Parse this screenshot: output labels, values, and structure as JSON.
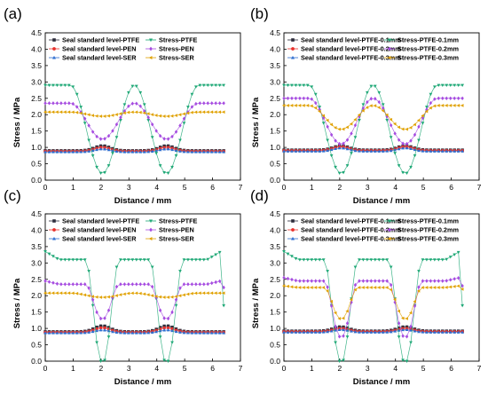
{
  "chart_data": [
    {
      "panel": "(a)",
      "type": "line",
      "xlabel": "Distance / mm",
      "ylabel": "Stress / MPa",
      "xlim": [
        0,
        7
      ],
      "ylim": [
        0,
        4.5
      ],
      "xticks": [
        0,
        1,
        2,
        3,
        4,
        5,
        6,
        7
      ],
      "yticks": [
        0.0,
        0.5,
        1.0,
        1.5,
        2.0,
        2.5,
        3.0,
        3.5,
        4.0,
        4.5
      ],
      "legend": "top, two columns",
      "series": [
        {
          "name": "Seal standard level-PTFE",
          "color": "#2b2b3a",
          "marker": "square",
          "profile": "bump",
          "base": 0.9,
          "peak": 1.05,
          "x_range": [
            0,
            6.4
          ]
        },
        {
          "name": "Seal standard level-PEN",
          "color": "#e8302b",
          "marker": "circle",
          "profile": "bump",
          "base": 0.88,
          "peak": 1.0,
          "x_range": [
            0,
            6.4
          ]
        },
        {
          "name": "Seal standard level-SER",
          "color": "#2f6fd0",
          "marker": "triangle-up",
          "profile": "bump",
          "base": 0.86,
          "peak": 0.95,
          "x_range": [
            0,
            6.4
          ]
        },
        {
          "name": "Stress-PTFE",
          "color": "#1ea876",
          "marker": "triangle-down",
          "profile": "sine",
          "high": 2.9,
          "low": 0.2,
          "x_range": [
            0,
            6.4
          ]
        },
        {
          "name": "Stress-PEN",
          "color": "#a64ce0",
          "marker": "diamond",
          "profile": "sine",
          "high": 2.35,
          "low": 1.25,
          "x_range": [
            0,
            6.4
          ]
        },
        {
          "name": "Stress-SER",
          "color": "#e0a100",
          "marker": "triangle-left",
          "profile": "sine",
          "high": 2.08,
          "low": 1.95,
          "x_range": [
            0,
            6.4
          ]
        }
      ]
    },
    {
      "panel": "(b)",
      "type": "line",
      "xlabel": "Distance / mm",
      "ylabel": "Stress / MPa",
      "xlim": [
        0,
        7
      ],
      "ylim": [
        0,
        4.5
      ],
      "xticks": [
        0,
        1,
        2,
        3,
        4,
        5,
        6,
        7
      ],
      "yticks": [
        0.0,
        0.5,
        1.0,
        1.5,
        2.0,
        2.5,
        3.0,
        3.5,
        4.0,
        4.5
      ],
      "legend": "top, two columns",
      "series": [
        {
          "name": "Seal standard level-PTFE-0.1mm",
          "color": "#2b2b3a",
          "marker": "square",
          "profile": "bump",
          "base": 0.92,
          "peak": 1.05,
          "x_range": [
            0,
            6.4
          ]
        },
        {
          "name": "Seal standard level-PTFE-0.2mm",
          "color": "#e8302b",
          "marker": "circle",
          "profile": "bump",
          "base": 0.9,
          "peak": 1.02,
          "x_range": [
            0,
            6.4
          ]
        },
        {
          "name": "Seal standard level-PTFE-0.3mm",
          "color": "#2f6fd0",
          "marker": "triangle-up",
          "profile": "bump",
          "base": 0.88,
          "peak": 0.98,
          "x_range": [
            0,
            6.4
          ]
        },
        {
          "name": "Stress-PTFE-0.1mm",
          "color": "#1ea876",
          "marker": "triangle-down",
          "profile": "sine",
          "high": 2.9,
          "low": 0.2,
          "x_range": [
            0,
            6.4
          ]
        },
        {
          "name": "Stress-PTFE-0.2mm",
          "color": "#a64ce0",
          "marker": "diamond",
          "profile": "sine",
          "high": 2.5,
          "low": 1.1,
          "x_range": [
            0,
            6.4
          ]
        },
        {
          "name": "Stress-PTFE-0.3mm",
          "color": "#e0a100",
          "marker": "triangle-left",
          "profile": "sine",
          "high": 2.28,
          "low": 1.55,
          "x_range": [
            0,
            6.4
          ]
        }
      ]
    },
    {
      "panel": "(c)",
      "type": "line",
      "xlabel": "Distance / mm",
      "ylabel": "Stress / MPa",
      "xlim": [
        0,
        7
      ],
      "ylim": [
        0,
        4.5
      ],
      "xticks": [
        0,
        1,
        2,
        3,
        4,
        5,
        6,
        7
      ],
      "yticks": [
        0.0,
        0.5,
        1.0,
        1.5,
        2.0,
        2.5,
        3.0,
        3.5,
        4.0,
        4.5
      ],
      "legend": "top, two columns",
      "series": [
        {
          "name": "Seal standard level-PTFE",
          "color": "#2b2b3a",
          "marker": "square",
          "profile": "bump",
          "base": 0.9,
          "peak": 1.08,
          "x_range": [
            0,
            6.4
          ]
        },
        {
          "name": "Seal standard level-PEN",
          "color": "#e8302b",
          "marker": "circle",
          "profile": "bump",
          "base": 0.88,
          "peak": 1.02,
          "x_range": [
            0,
            6.4
          ]
        },
        {
          "name": "Seal standard level-SER",
          "color": "#2f6fd0",
          "marker": "triangle-up",
          "profile": "bump",
          "base": 0.86,
          "peak": 0.95,
          "x_range": [
            0,
            6.4
          ]
        },
        {
          "name": "Stress-PTFE",
          "color": "#1ea876",
          "marker": "triangle-down",
          "profile": "plateau",
          "high": 3.1,
          "low": 0.0,
          "edge_high": 3.35,
          "end_low": 1.7,
          "x_range": [
            0,
            6.4
          ]
        },
        {
          "name": "Stress-PEN",
          "color": "#a64ce0",
          "marker": "diamond",
          "profile": "plateau",
          "high": 2.35,
          "low": 1.3,
          "edge_high": 2.45,
          "end_low": 2.25,
          "x_range": [
            0,
            6.4
          ]
        },
        {
          "name": "Stress-SER",
          "color": "#e0a100",
          "marker": "triangle-left",
          "profile": "sine",
          "high": 2.08,
          "low": 1.95,
          "x_range": [
            0,
            6.4
          ]
        }
      ]
    },
    {
      "panel": "(d)",
      "type": "line",
      "xlabel": "Distance / mm",
      "ylabel": "Stress / MPa",
      "xlim": [
        0,
        7
      ],
      "ylim": [
        0,
        4.5
      ],
      "xticks": [
        0,
        1,
        2,
        3,
        4,
        5,
        6,
        7
      ],
      "yticks": [
        0.0,
        0.5,
        1.0,
        1.5,
        2.0,
        2.5,
        3.0,
        3.5,
        4.0,
        4.5
      ],
      "legend": "top, two columns",
      "series": [
        {
          "name": "Seal standard level-PTFE-0.1mm",
          "color": "#2b2b3a",
          "marker": "square",
          "profile": "bump",
          "base": 0.92,
          "peak": 1.05,
          "x_range": [
            0,
            6.4
          ]
        },
        {
          "name": "Seal standard level-PTFE-0.2mm",
          "color": "#e8302b",
          "marker": "circle",
          "profile": "bump",
          "base": 0.9,
          "peak": 1.0,
          "x_range": [
            0,
            6.4
          ]
        },
        {
          "name": "Seal standard level-PTFE-0.3mm",
          "color": "#2f6fd0",
          "marker": "triangle-up",
          "profile": "bump",
          "base": 0.88,
          "peak": 0.96,
          "x_range": [
            0,
            6.4
          ]
        },
        {
          "name": "Stress-PTFE-0.1mm",
          "color": "#1ea876",
          "marker": "triangle-down",
          "profile": "plateau",
          "high": 3.1,
          "low": 0.0,
          "edge_high": 3.35,
          "end_low": 1.7,
          "x_range": [
            0,
            6.4
          ]
        },
        {
          "name": "Stress-PTFE-0.2mm",
          "color": "#a64ce0",
          "marker": "diamond",
          "profile": "plateau",
          "high": 2.45,
          "low": 0.75,
          "edge_high": 2.55,
          "end_low": 2.3,
          "x_range": [
            0,
            6.4
          ]
        },
        {
          "name": "Stress-PTFE-0.3mm",
          "color": "#e0a100",
          "marker": "triangle-left",
          "profile": "plateau",
          "high": 2.25,
          "low": 1.3,
          "edge_high": 2.3,
          "end_low": 2.2,
          "x_range": [
            0,
            6.4
          ]
        }
      ]
    }
  ]
}
